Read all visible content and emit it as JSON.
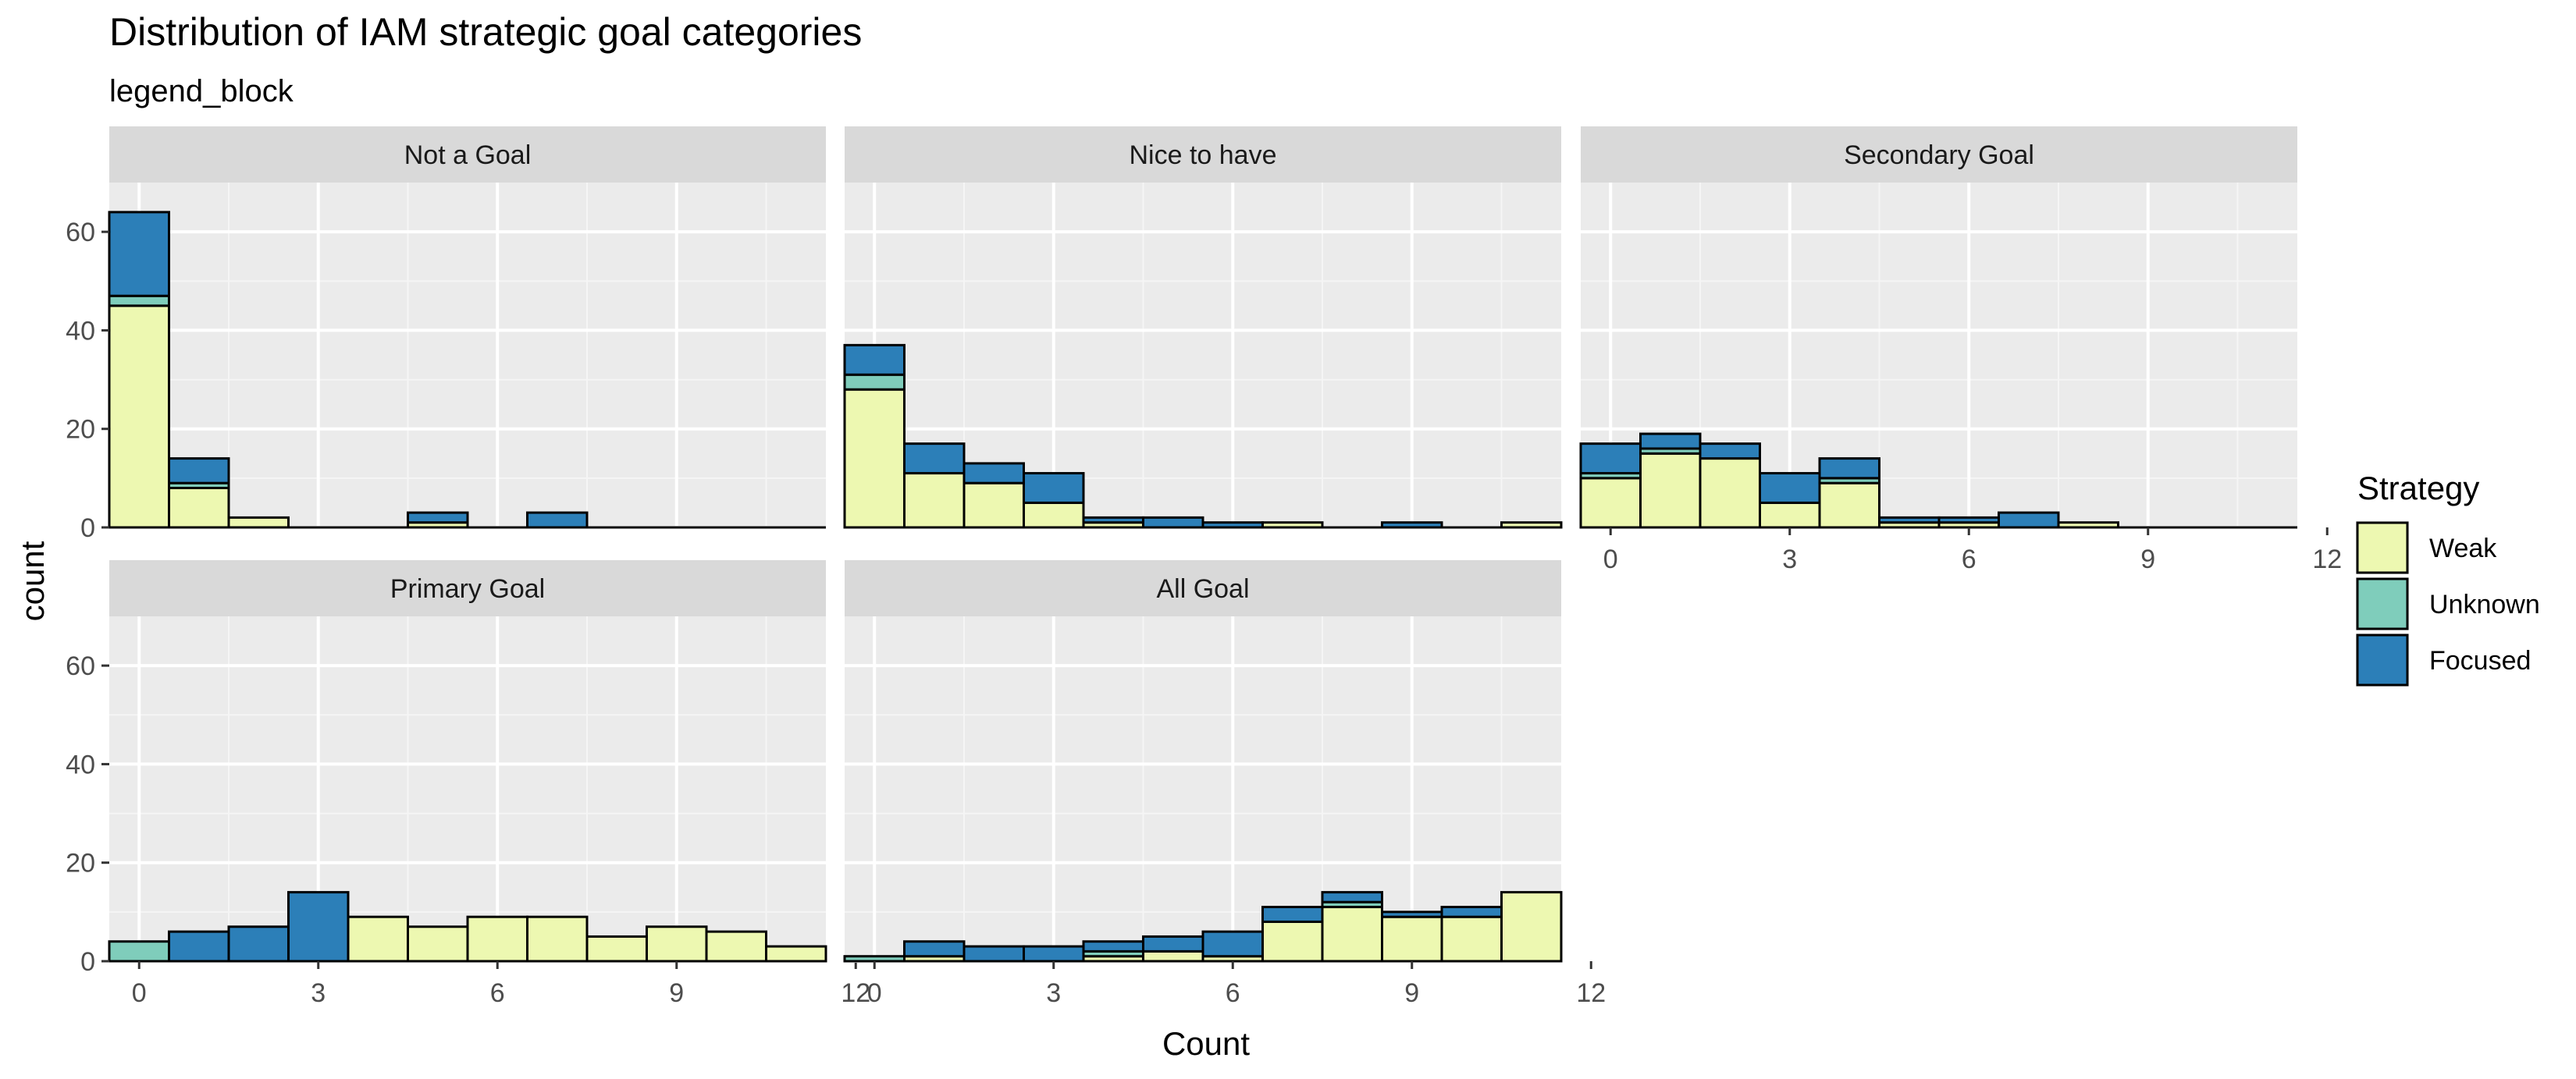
{
  "chart_data": {
    "type": "bar",
    "title": "Distribution of IAM strategic goal categories",
    "subtitle": "legend_block",
    "xlabel": "Count",
    "ylabel": "count",
    "xlim": [
      -0.5,
      11.5
    ],
    "ylim": [
      0,
      70
    ],
    "x_ticks": [
      0,
      3,
      6,
      9,
      12
    ],
    "y_ticks": [
      0,
      20,
      40,
      60
    ],
    "grid": true,
    "legend": {
      "title": "Strategy",
      "position": "right",
      "entries": [
        {
          "name": "Weak",
          "color": "#edf8b1"
        },
        {
          "name": "Unknown",
          "color": "#7fcdbb"
        },
        {
          "name": "Focused",
          "color": "#2c7fb8"
        }
      ]
    },
    "bins": [
      0,
      1,
      2,
      3,
      4,
      5,
      6,
      7,
      8,
      9,
      10,
      11
    ],
    "panels": [
      {
        "title": "Not a Goal",
        "series": [
          {
            "name": "Weak",
            "values": [
              45,
              8,
              2,
              0,
              0,
              1,
              0,
              0,
              0,
              0,
              0,
              0
            ]
          },
          {
            "name": "Unknown",
            "values": [
              2,
              1,
              0,
              0,
              0,
              0,
              0,
              0,
              0,
              0,
              0,
              0
            ]
          },
          {
            "name": "Focused",
            "values": [
              17,
              5,
              0,
              0,
              0,
              2,
              0,
              3,
              0,
              0,
              0,
              0
            ]
          }
        ]
      },
      {
        "title": "Nice to have",
        "series": [
          {
            "name": "Weak",
            "values": [
              28,
              11,
              9,
              5,
              1,
              0,
              0,
              1,
              0,
              0,
              0,
              1
            ]
          },
          {
            "name": "Unknown",
            "values": [
              3,
              0,
              0,
              0,
              0,
              0,
              0,
              0,
              0,
              0,
              0,
              0
            ]
          },
          {
            "name": "Focused",
            "values": [
              6,
              6,
              4,
              6,
              1,
              2,
              1,
              0,
              0,
              1,
              0,
              0
            ]
          }
        ]
      },
      {
        "title": "Secondary Goal",
        "series": [
          {
            "name": "Weak",
            "values": [
              10,
              15,
              14,
              5,
              9,
              1,
              1,
              0,
              1,
              0,
              0,
              0
            ]
          },
          {
            "name": "Unknown",
            "values": [
              1,
              1,
              0,
              0,
              1,
              0,
              0,
              0,
              0,
              0,
              0,
              0
            ]
          },
          {
            "name": "Focused",
            "values": [
              6,
              3,
              3,
              6,
              4,
              1,
              1,
              3,
              0,
              0,
              0,
              0
            ]
          }
        ]
      },
      {
        "title": "Primary Goal",
        "series": [
          {
            "name": "Weak",
            "values": [
              0,
              0,
              0,
              0,
              9,
              7,
              9,
              9,
              5,
              7,
              6,
              3
            ]
          },
          {
            "name": "Unknown",
            "values": [
              4,
              0,
              0,
              0,
              0,
              0,
              0,
              0,
              0,
              0,
              0,
              0
            ]
          },
          {
            "name": "Focused",
            "values": [
              0,
              6,
              7,
              14,
              0,
              0,
              0,
              0,
              0,
              0,
              0,
              0
            ]
          }
        ]
      },
      {
        "title": "All Goal",
        "series": [
          {
            "name": "Weak",
            "values": [
              0,
              1,
              0,
              0,
              1,
              2,
              1,
              8,
              11,
              9,
              9,
              14
            ]
          },
          {
            "name": "Unknown",
            "values": [
              1,
              0,
              0,
              0,
              1,
              0,
              0,
              0,
              1,
              0,
              0,
              0
            ]
          },
          {
            "name": "Focused",
            "values": [
              0,
              3,
              3,
              3,
              2,
              3,
              5,
              3,
              2,
              1,
              2,
              0
            ]
          }
        ]
      }
    ]
  }
}
